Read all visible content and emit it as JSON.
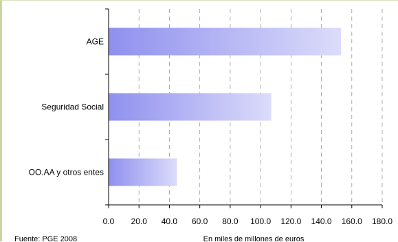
{
  "chart_data": {
    "type": "bar",
    "orientation": "horizontal",
    "categories": [
      "AGE",
      "Seguridad Social",
      "OO.AA y otros entes"
    ],
    "values": [
      153,
      107,
      45
    ],
    "xlim": [
      0,
      180
    ],
    "xticks": [
      "0.0",
      "20.0",
      "40.0",
      "60.0",
      "80.0",
      "100.0",
      "120.0",
      "140.0",
      "160.0",
      "180.0"
    ],
    "xlabel": "En miles de millones de euros",
    "source": "Fuente: PGE 2008",
    "grid": "vertical dashed",
    "legend": "none",
    "colors": {
      "bar_left": "#8f90ee",
      "bar_right": "#dcdcfb",
      "grid": "#9a9a9a",
      "axis": "#000000"
    }
  }
}
